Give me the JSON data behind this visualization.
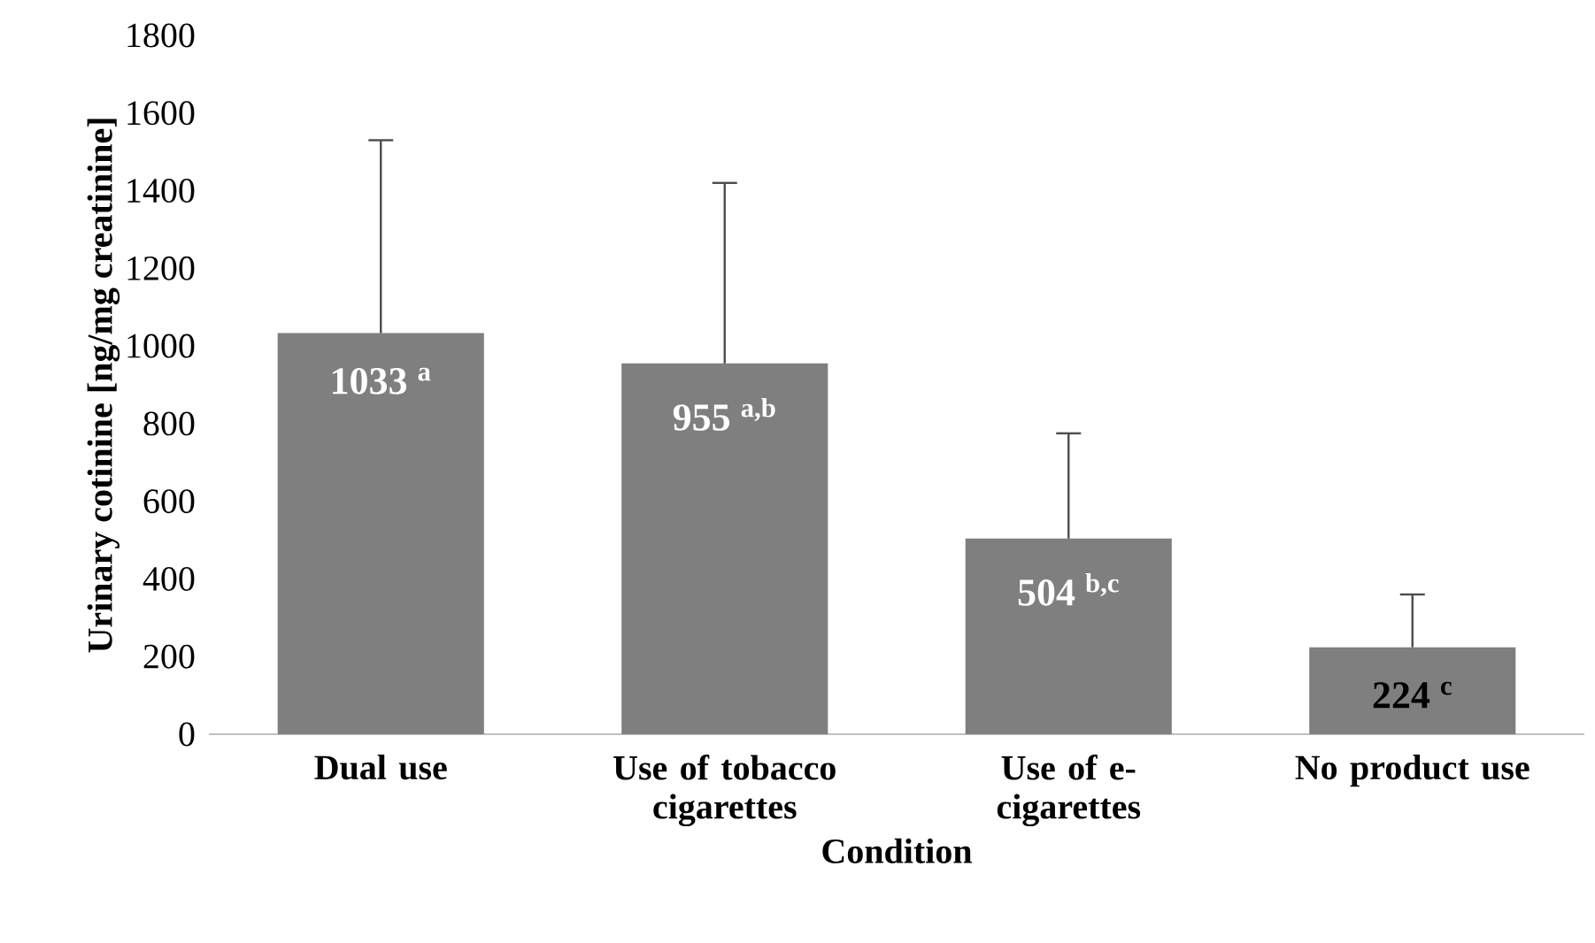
{
  "chart_data": {
    "type": "bar",
    "xlabel": "Condition",
    "ylabel": "Urinary cotinine [ng/mg creatinine]",
    "categories": [
      "Dual use",
      "Use of tobacco cigarettes",
      "Use of e-cigarettes",
      "No product use"
    ],
    "values": [
      1033,
      955,
      504,
      224
    ],
    "value_labels": [
      "1033 $^{a}$",
      "955 $^{a,b}$",
      "504 $^{b,c}$",
      "224 $^{c}$"
    ],
    "errors": [
      [
        1033,
        1530
      ],
      [
        955,
        1420
      ],
      [
        504,
        775
      ],
      [
        224,
        360
      ]
    ],
    "color": "#7f7f7f",
    "ylim": [
      0,
      1800
    ],
    "yticks": [
      0,
      200,
      400,
      600,
      800,
      1000,
      1200,
      1400,
      1600,
      1800
    ],
    "grid": false
  }
}
